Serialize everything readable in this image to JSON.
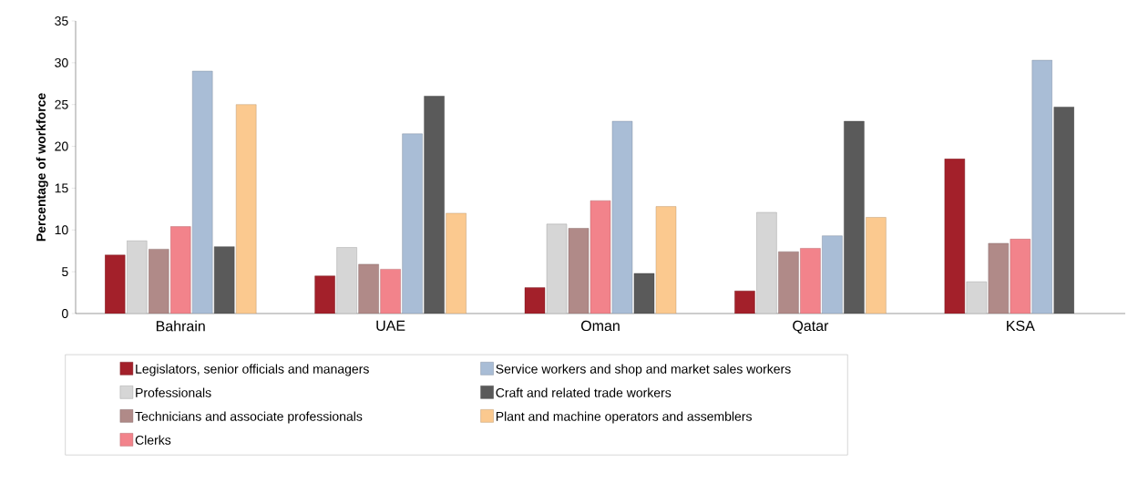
{
  "chart_data": {
    "type": "bar",
    "ylabel": "Percentage of workforce",
    "categories": [
      "Bahrain",
      "UAE",
      "Oman",
      "Qatar",
      "KSA"
    ],
    "series": [
      {
        "name": "Legislators, senior officials and managers",
        "color": "#a3202a",
        "values": [
          7,
          4.5,
          3.1,
          2.7,
          18.5
        ]
      },
      {
        "name": "Professionals",
        "color": "#d6d6d6",
        "values": [
          8.7,
          7.9,
          10.7,
          12.1,
          3.8
        ]
      },
      {
        "name": "Technicians and associate professionals",
        "color": "#b08a88",
        "values": [
          7.7,
          5.9,
          10.2,
          7.4,
          8.4
        ]
      },
      {
        "name": "Clerks",
        "color": "#f2838b",
        "values": [
          10.4,
          5.3,
          13.5,
          7.8,
          8.9
        ]
      },
      {
        "name": "Service workers and shop and market sales workers",
        "color": "#a9bdd6",
        "values": [
          29,
          21.5,
          23,
          9.3,
          30.3
        ]
      },
      {
        "name": "Craft and related trade workers",
        "color": "#5a5a5a",
        "values": [
          8,
          26,
          4.8,
          23,
          24.7
        ]
      },
      {
        "name": "Plant and machine operators and assemblers",
        "color": "#fbc98f",
        "values": [
          25,
          12,
          12.8,
          11.5,
          null
        ]
      }
    ],
    "ylim": [
      0,
      35
    ],
    "yticks": [
      0,
      5,
      10,
      15,
      20,
      25,
      30,
      35
    ],
    "grid": false,
    "legend": "bottom"
  }
}
